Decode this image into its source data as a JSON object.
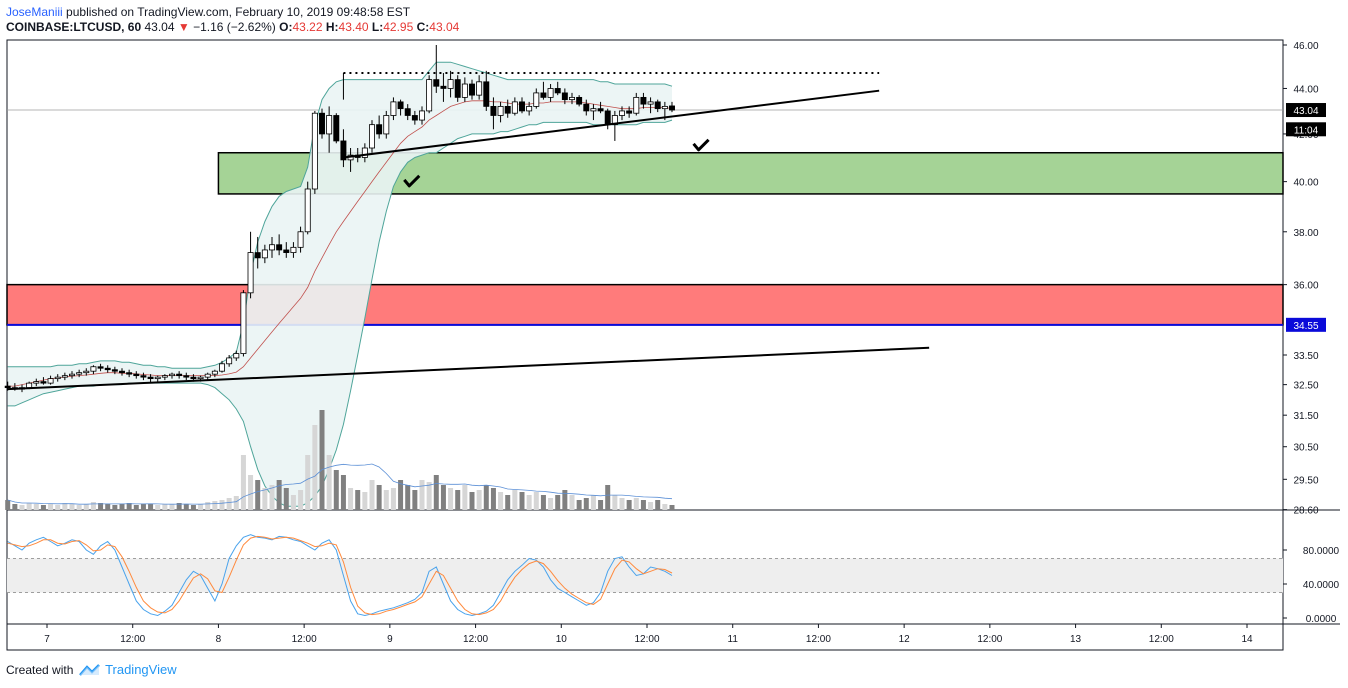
{
  "header": {
    "author": "JoseManiii",
    "published_text": "published on TradingView.com, February 10, 2019 09:48:58 EST",
    "symbol": "COINBASE:LTCUSD, 60",
    "last": "43.04",
    "change_arrow": "▼",
    "change": "−1.16 (−2.62%)",
    "o_label": "O:",
    "o_value": "43.22",
    "h_label": "H:",
    "h_value": "43.40",
    "l_label": "L:",
    "l_value": "42.95",
    "c_label": "C:",
    "c_value": "43.04"
  },
  "footer": {
    "created_with": "Created with",
    "brand": "TradingView"
  },
  "colors": {
    "up": "#ffffff",
    "down": "#000000",
    "zone_green": "#a5d396",
    "zone_red": "#ff7b7b",
    "bb": "#4fa59a",
    "bb_fill": "#eaf4f4",
    "sma": "#c0504d",
    "stoch_k": "#4aa3ec",
    "stoch_d": "#ff8a3d",
    "price_tag": "#000000",
    "support_tag": "#0a0ad9"
  },
  "chart_data": {
    "type": "candlestick",
    "price_axis": {
      "scale": "log",
      "ticks": [
        "46.00",
        "44.00",
        "42.00",
        "40.00",
        "38.00",
        "36.00",
        "33.50",
        "32.50",
        "31.50",
        "30.50",
        "29.50",
        "28.60"
      ],
      "tick_values": [
        46.0,
        44.0,
        42.0,
        40.0,
        38.0,
        36.0,
        33.5,
        32.5,
        31.5,
        30.5,
        29.5,
        28.6
      ],
      "tags": [
        {
          "text": "43.04",
          "value": 43.04,
          "color": "#000000"
        },
        {
          "text": "11:04",
          "value": 42.2,
          "color": "#000000"
        },
        {
          "text": "34.55",
          "value": 34.55,
          "color": "#0a0ad9"
        }
      ]
    },
    "time_axis": {
      "ticks": [
        "7",
        "12:00",
        "8",
        "12:00",
        "9",
        "12:00",
        "10",
        "12:00",
        "11",
        "12:00",
        "12",
        "12:00",
        "13",
        "12:00",
        "14"
      ],
      "tick_hours": [
        0,
        12,
        24,
        36,
        48,
        60,
        72,
        84,
        96,
        108,
        120,
        132,
        144,
        156,
        168
      ],
      "first_bar_hour": -5.5
    },
    "zones": [
      {
        "name": "resistance-zone",
        "color": "green",
        "from": 39.5,
        "to": 41.2,
        "start_hour": 24
      },
      {
        "name": "support-zone",
        "color": "red",
        "from": 34.55,
        "to": 36.0,
        "start_hour": -6
      }
    ],
    "trendlines": [
      {
        "from_hour": -5.5,
        "from": 32.35,
        "to_hour": 123.5,
        "to": 33.75,
        "style": "solid"
      },
      {
        "from_hour": 41.5,
        "from": 41.0,
        "to_hour": 116.5,
        "to": 43.9,
        "style": "solid"
      },
      {
        "from_hour": 41.5,
        "from": 44.7,
        "to_hour": 116.5,
        "to": 44.7,
        "style": "dotted"
      }
    ],
    "checkmarks": [
      {
        "hour": 51,
        "value": 39.95
      },
      {
        "hour": 91.5,
        "value": 41.45
      }
    ],
    "candles": [
      [
        32.45,
        32.6,
        32.3,
        32.4
      ],
      [
        32.4,
        32.55,
        32.3,
        32.35
      ],
      [
        32.35,
        32.5,
        32.25,
        32.4
      ],
      [
        32.4,
        32.6,
        32.35,
        32.55
      ],
      [
        32.55,
        32.7,
        32.45,
        32.6
      ],
      [
        32.6,
        32.75,
        32.5,
        32.55
      ],
      [
        32.55,
        32.8,
        32.5,
        32.7
      ],
      [
        32.7,
        32.85,
        32.6,
        32.75
      ],
      [
        32.75,
        32.9,
        32.65,
        32.8
      ],
      [
        32.8,
        32.95,
        32.7,
        32.85
      ],
      [
        32.85,
        33.0,
        32.75,
        32.9
      ],
      [
        32.9,
        33.05,
        32.8,
        32.95
      ],
      [
        32.95,
        33.15,
        32.85,
        33.1
      ],
      [
        33.1,
        33.2,
        32.95,
        33.05
      ],
      [
        33.05,
        33.15,
        32.9,
        33.0
      ],
      [
        33.0,
        33.1,
        32.85,
        32.95
      ],
      [
        32.95,
        33.05,
        32.8,
        32.9
      ],
      [
        32.9,
        33.0,
        32.75,
        32.85
      ],
      [
        32.85,
        32.95,
        32.7,
        32.8
      ],
      [
        32.8,
        32.9,
        32.65,
        32.75
      ],
      [
        32.75,
        32.85,
        32.55,
        32.7
      ],
      [
        32.7,
        32.8,
        32.6,
        32.75
      ],
      [
        32.75,
        32.85,
        32.65,
        32.8
      ],
      [
        32.8,
        32.9,
        32.7,
        32.85
      ],
      [
        32.85,
        32.95,
        32.7,
        32.8
      ],
      [
        32.8,
        32.9,
        32.65,
        32.75
      ],
      [
        32.75,
        32.85,
        32.6,
        32.7
      ],
      [
        32.7,
        32.8,
        32.6,
        32.75
      ],
      [
        32.75,
        32.9,
        32.65,
        32.85
      ],
      [
        32.85,
        33.0,
        32.75,
        32.95
      ],
      [
        32.95,
        33.3,
        32.9,
        33.2
      ],
      [
        33.2,
        33.5,
        33.1,
        33.4
      ],
      [
        33.4,
        33.65,
        33.3,
        33.55
      ],
      [
        33.55,
        35.8,
        33.45,
        35.7
      ],
      [
        35.7,
        38.0,
        35.5,
        37.2
      ],
      [
        37.2,
        37.8,
        36.6,
        37.0
      ],
      [
        37.0,
        37.5,
        36.8,
        37.3
      ],
      [
        37.3,
        37.8,
        37.0,
        37.5
      ],
      [
        37.5,
        37.9,
        37.1,
        37.3
      ],
      [
        37.3,
        37.6,
        37.0,
        37.2
      ],
      [
        37.2,
        37.6,
        37.0,
        37.4
      ],
      [
        37.4,
        38.2,
        37.2,
        38.0
      ],
      [
        38.0,
        40.0,
        37.9,
        39.7
      ],
      [
        39.7,
        43.0,
        39.5,
        42.9
      ],
      [
        42.9,
        43.1,
        41.8,
        42.0
      ],
      [
        42.0,
        43.2,
        41.2,
        42.8
      ],
      [
        42.8,
        42.9,
        41.6,
        41.7
      ],
      [
        41.7,
        42.2,
        40.6,
        40.9
      ],
      [
        40.9,
        41.4,
        40.4,
        41.1
      ],
      [
        41.1,
        41.4,
        40.8,
        41.0
      ],
      [
        41.0,
        41.6,
        40.8,
        41.4
      ],
      [
        41.4,
        42.6,
        41.2,
        42.4
      ],
      [
        42.4,
        42.8,
        41.8,
        42.0
      ],
      [
        42.0,
        43.0,
        41.8,
        42.8
      ],
      [
        42.8,
        43.6,
        42.6,
        43.4
      ],
      [
        43.4,
        43.5,
        42.8,
        43.1
      ],
      [
        43.1,
        43.3,
        42.6,
        42.8
      ],
      [
        42.8,
        43.0,
        42.4,
        42.6
      ],
      [
        42.6,
        43.2,
        42.4,
        43.0
      ],
      [
        43.0,
        44.6,
        42.9,
        44.4
      ],
      [
        44.4,
        46.0,
        43.8,
        44.1
      ],
      [
        44.1,
        44.7,
        43.4,
        44.0
      ],
      [
        44.0,
        44.8,
        43.6,
        44.4
      ],
      [
        44.4,
        44.6,
        43.4,
        43.6
      ],
      [
        43.6,
        44.5,
        43.4,
        44.2
      ],
      [
        44.2,
        44.4,
        43.5,
        43.7
      ],
      [
        43.7,
        44.6,
        43.5,
        44.3
      ],
      [
        44.3,
        44.8,
        43.0,
        43.2
      ],
      [
        43.2,
        43.6,
        42.2,
        42.8
      ],
      [
        42.8,
        43.4,
        42.5,
        43.2
      ],
      [
        43.2,
        43.5,
        42.7,
        42.9
      ],
      [
        42.9,
        43.6,
        42.8,
        43.4
      ],
      [
        43.4,
        43.6,
        42.9,
        43.0
      ],
      [
        43.0,
        43.4,
        42.8,
        43.2
      ],
      [
        43.2,
        44.0,
        43.1,
        43.8
      ],
      [
        43.8,
        44.3,
        43.5,
        43.6
      ],
      [
        43.6,
        44.2,
        43.4,
        44.0
      ],
      [
        44.0,
        44.3,
        43.7,
        43.8
      ],
      [
        43.8,
        44.0,
        43.3,
        43.5
      ],
      [
        43.5,
        43.8,
        43.3,
        43.6
      ],
      [
        43.6,
        43.7,
        43.2,
        43.3
      ],
      [
        43.3,
        43.5,
        42.8,
        43.0
      ],
      [
        43.0,
        43.3,
        42.6,
        43.1
      ],
      [
        43.1,
        43.4,
        42.9,
        43.0
      ],
      [
        43.0,
        43.1,
        42.2,
        42.4
      ],
      [
        42.4,
        43.0,
        41.7,
        42.8
      ],
      [
        42.8,
        43.2,
        42.6,
        43.0
      ],
      [
        43.0,
        43.2,
        42.7,
        42.9
      ],
      [
        42.9,
        43.8,
        42.8,
        43.6
      ],
      [
        43.6,
        43.8,
        43.1,
        43.3
      ],
      [
        43.3,
        43.6,
        42.9,
        43.4
      ],
      [
        43.4,
        43.5,
        42.95,
        43.1
      ],
      [
        43.1,
        43.4,
        42.6,
        43.2
      ],
      [
        43.22,
        43.4,
        42.95,
        43.04
      ]
    ],
    "bollinger": {
      "upper": [
        33.1,
        33.1,
        33.1,
        33.1,
        33.1,
        33.1,
        33.1,
        33.15,
        33.15,
        33.15,
        33.2,
        33.2,
        33.25,
        33.3,
        33.3,
        33.3,
        33.25,
        33.25,
        33.2,
        33.15,
        33.15,
        33.1,
        33.1,
        33.05,
        33.05,
        33.05,
        33.05,
        33.05,
        33.1,
        33.15,
        33.25,
        33.4,
        33.6,
        34.6,
        36.4,
        37.6,
        38.4,
        39.0,
        39.4,
        39.6,
        39.7,
        39.8,
        40.6,
        42.4,
        43.5,
        44.0,
        44.3,
        44.4,
        44.4,
        44.4,
        44.4,
        44.4,
        44.4,
        44.4,
        44.4,
        44.4,
        44.4,
        44.4,
        44.4,
        44.8,
        45.2,
        45.2,
        45.2,
        45.1,
        45.0,
        44.9,
        44.8,
        44.7,
        44.6,
        44.5,
        44.4,
        44.4,
        44.4,
        44.4,
        44.4,
        44.4,
        44.4,
        44.4,
        44.4,
        44.4,
        44.4,
        44.4,
        44.4,
        44.3,
        44.3,
        44.2,
        44.2,
        44.2,
        44.2,
        44.2,
        44.2,
        44.2,
        44.2,
        44.1
      ],
      "lower": [
        31.8,
        31.8,
        31.9,
        32.0,
        32.1,
        32.2,
        32.25,
        32.3,
        32.35,
        32.4,
        32.45,
        32.45,
        32.45,
        32.5,
        32.5,
        32.5,
        32.5,
        32.55,
        32.55,
        32.55,
        32.55,
        32.55,
        32.55,
        32.55,
        32.55,
        32.55,
        32.55,
        32.55,
        32.5,
        32.4,
        32.2,
        32.0,
        31.7,
        31.3,
        30.5,
        29.8,
        29.3,
        29.0,
        28.8,
        28.7,
        28.7,
        28.7,
        28.8,
        29.0,
        29.3,
        29.8,
        30.4,
        31.2,
        32.3,
        33.5,
        34.8,
        36.2,
        37.6,
        38.8,
        39.8,
        40.4,
        40.8,
        41.0,
        41.1,
        41.2,
        41.2,
        41.4,
        41.6,
        41.8,
        41.9,
        42.0,
        42.0,
        42.0,
        42.0,
        42.1,
        42.1,
        42.2,
        42.3,
        42.4,
        42.4,
        42.5,
        42.5,
        42.5,
        42.5,
        42.5,
        42.5,
        42.5,
        42.4,
        42.4,
        42.4,
        42.4,
        42.4,
        42.4,
        42.4,
        42.5,
        42.5,
        42.5,
        42.5,
        42.6
      ],
      "middle": [
        32.45,
        32.45,
        32.5,
        32.55,
        32.6,
        32.65,
        32.7,
        32.72,
        32.75,
        32.78,
        32.8,
        32.82,
        32.85,
        32.88,
        32.9,
        32.9,
        32.88,
        32.88,
        32.86,
        32.84,
        32.82,
        32.8,
        32.8,
        32.8,
        32.8,
        32.8,
        32.8,
        32.8,
        32.8,
        32.8,
        32.82,
        32.86,
        32.92,
        33.1,
        33.4,
        33.7,
        34.0,
        34.3,
        34.6,
        34.9,
        35.2,
        35.5,
        35.9,
        36.5,
        37.0,
        37.5,
        38.0,
        38.4,
        38.8,
        39.2,
        39.6,
        40.0,
        40.4,
        40.8,
        41.2,
        41.6,
        41.9,
        42.1,
        42.3,
        42.6,
        42.8,
        43.0,
        43.2,
        43.3,
        43.4,
        43.45,
        43.45,
        43.45,
        43.4,
        43.4,
        43.35,
        43.3,
        43.3,
        43.3,
        43.35,
        43.35,
        43.4,
        43.4,
        43.4,
        43.4,
        43.4,
        43.35,
        43.3,
        43.25,
        43.2,
        43.15,
        43.1,
        43.1,
        43.1,
        43.15,
        43.15,
        43.15,
        43.15,
        43.1
      ]
    },
    "volume": [
      0.1,
      0.06,
      0.05,
      0.07,
      0.06,
      0.05,
      0.06,
      0.05,
      0.07,
      0.06,
      0.05,
      0.06,
      0.08,
      0.07,
      0.06,
      0.05,
      0.06,
      0.07,
      0.05,
      0.06,
      0.06,
      0.05,
      0.06,
      0.06,
      0.07,
      0.06,
      0.05,
      0.06,
      0.08,
      0.09,
      0.1,
      0.12,
      0.14,
      0.55,
      0.35,
      0.3,
      0.22,
      0.25,
      0.3,
      0.22,
      0.15,
      0.2,
      0.55,
      0.85,
      1.0,
      0.55,
      0.4,
      0.35,
      0.22,
      0.2,
      0.18,
      0.3,
      0.25,
      0.2,
      0.22,
      0.3,
      0.25,
      0.2,
      0.3,
      0.28,
      0.35,
      0.25,
      0.22,
      0.2,
      0.25,
      0.18,
      0.2,
      0.25,
      0.22,
      0.18,
      0.15,
      0.2,
      0.18,
      0.15,
      0.18,
      0.15,
      0.12,
      0.15,
      0.2,
      0.15,
      0.1,
      0.12,
      0.15,
      0.1,
      0.25,
      0.15,
      0.12,
      0.1,
      0.12,
      0.1,
      0.08,
      0.1,
      0.06,
      0.05
    ],
    "stochastic": {
      "axis_ticks": [
        "80.0000",
        "40.0000",
        "0.0000"
      ],
      "axis_values": [
        80,
        40,
        0
      ],
      "band": [
        30,
        70
      ],
      "k": [
        90,
        85,
        80,
        88,
        92,
        95,
        90,
        85,
        88,
        92,
        90,
        80,
        75,
        85,
        90,
        80,
        60,
        40,
        20,
        10,
        5,
        3,
        8,
        15,
        30,
        45,
        55,
        50,
        35,
        20,
        40,
        70,
        85,
        95,
        98,
        95,
        94,
        92,
        96,
        95,
        92,
        90,
        85,
        80,
        88,
        92,
        80,
        50,
        20,
        5,
        3,
        5,
        8,
        10,
        12,
        15,
        18,
        22,
        30,
        55,
        60,
        40,
        20,
        10,
        5,
        3,
        5,
        8,
        15,
        30,
        45,
        55,
        62,
        70,
        68,
        60,
        45,
        35,
        30,
        25,
        20,
        15,
        18,
        30,
        55,
        70,
        72,
        60,
        50,
        52,
        60,
        58,
        55,
        50
      ],
      "d": [
        88,
        86,
        84,
        85,
        88,
        92,
        92,
        88,
        87,
        90,
        91,
        86,
        79,
        80,
        86,
        84,
        72,
        55,
        36,
        20,
        12,
        7,
        6,
        10,
        20,
        34,
        47,
        52,
        46,
        32,
        30,
        48,
        68,
        86,
        94,
        96,
        95,
        93,
        94,
        95,
        94,
        91,
        88,
        84,
        85,
        88,
        86,
        66,
        36,
        14,
        6,
        4,
        5,
        8,
        10,
        13,
        16,
        19,
        25,
        40,
        55,
        50,
        35,
        20,
        10,
        5,
        4,
        6,
        10,
        20,
        35,
        48,
        57,
        64,
        67,
        64,
        55,
        44,
        35,
        28,
        23,
        18,
        16,
        22,
        40,
        58,
        68,
        66,
        58,
        52,
        55,
        58,
        57,
        53
      ]
    }
  }
}
